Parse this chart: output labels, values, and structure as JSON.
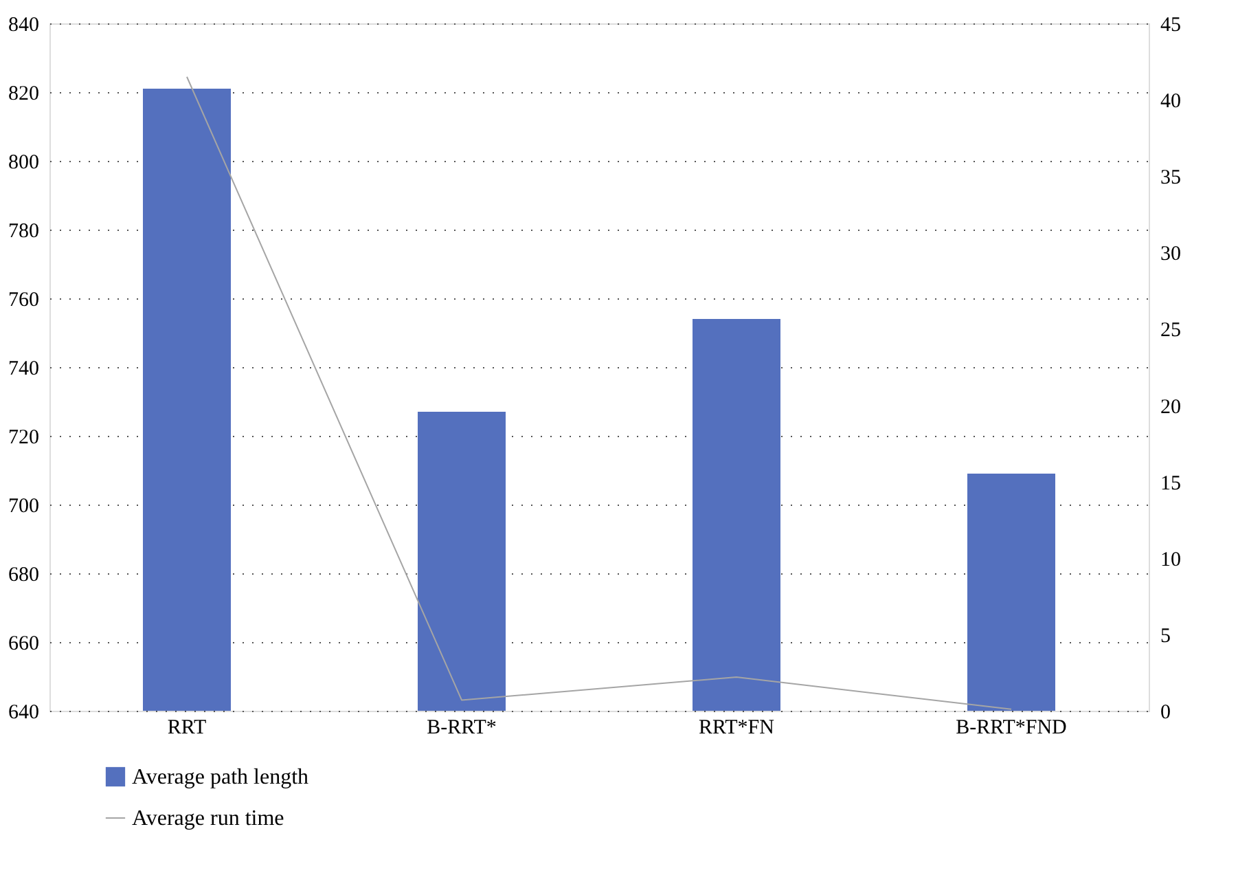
{
  "chart_data": {
    "type": "bar",
    "categories": [
      "RRT",
      "B-RRT*",
      "RRT*FN",
      "B-RRT*FND"
    ],
    "series": [
      {
        "name": "Average path length",
        "color": "#5470be",
        "values": [
          821,
          727,
          754,
          709
        ]
      },
      {
        "name": "Average run time",
        "color": "#a5a5a5",
        "type": "line",
        "axis": "y2",
        "values": [
          41.5,
          0.7,
          2.2,
          0.1
        ]
      }
    ],
    "ylim": [
      640,
      840
    ],
    "yticks": [
      640,
      660,
      680,
      700,
      720,
      740,
      760,
      780,
      800,
      820,
      840
    ],
    "y2lim": [
      0,
      45
    ],
    "y2ticks": [
      0,
      5,
      10,
      15,
      20,
      25,
      30,
      35,
      40,
      45
    ],
    "grid": "y",
    "legend": "bottom left",
    "marker": "none",
    "line_style": "solid"
  }
}
